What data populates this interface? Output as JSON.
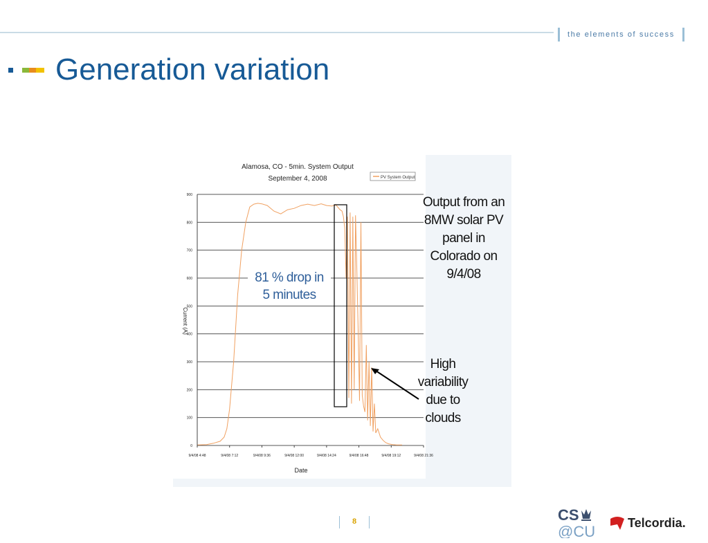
{
  "header": {
    "tagline": "the elements of success",
    "title": "Generation variation"
  },
  "chart_data": {
    "type": "line",
    "title": "Alamosa, CO - 5min. System Output",
    "subtitle": "September 4, 2008",
    "xlabel": "Date",
    "ylabel": "Current (A)",
    "ylim": [
      0,
      900
    ],
    "y_ticks": [
      "0",
      "100",
      "200",
      "300",
      "400",
      "500",
      "600",
      "700",
      "800",
      "900"
    ],
    "x_ticks": [
      "9/4/08 4:48",
      "9/4/08 7:12",
      "9/4/08 9:36",
      "9/4/08 12:00",
      "9/4/08 14:24",
      "9/4/08 16:48",
      "9/4/08 19:12",
      "9/4/08 21:36"
    ],
    "x_range_hours": [
      4.8,
      21.6
    ],
    "grid": "horizontal",
    "legend": {
      "placement": "top-right",
      "entries": [
        "PV System Output"
      ]
    },
    "series": [
      {
        "name": "PV System Output",
        "color": "#f0a060",
        "x_hours": [
          4.8,
          5.5,
          6.0,
          6.5,
          6.8,
          7.0,
          7.2,
          7.5,
          7.8,
          8.1,
          8.4,
          8.7,
          9.0,
          9.3,
          9.6,
          10.0,
          10.5,
          11.0,
          11.5,
          12.0,
          12.5,
          13.0,
          13.5,
          14.0,
          14.4,
          14.8,
          15.1,
          15.4,
          15.55,
          15.65,
          15.75,
          15.85,
          15.95,
          16.05,
          16.15,
          16.25,
          16.35,
          16.45,
          16.55,
          16.65,
          16.75,
          16.85,
          16.95,
          17.05,
          17.15,
          17.25,
          17.35,
          17.45,
          17.55,
          17.65,
          17.75,
          17.85,
          17.95,
          18.05,
          18.2,
          18.4,
          18.6,
          18.8,
          19.0,
          19.3,
          19.6,
          20.0
        ],
        "values": [
          2,
          3,
          8,
          15,
          30,
          60,
          130,
          300,
          540,
          700,
          800,
          855,
          865,
          868,
          866,
          860,
          840,
          830,
          845,
          850,
          860,
          865,
          860,
          866,
          860,
          858,
          862,
          845,
          840,
          820,
          780,
          600,
          820,
          170,
          835,
          150,
          820,
          200,
          825,
          620,
          400,
          160,
          800,
          180,
          140,
          120,
          360,
          90,
          300,
          70,
          280,
          50,
          150,
          45,
          60,
          30,
          18,
          10,
          6,
          3,
          2,
          2
        ]
      }
    ],
    "annotations": {
      "drop": "81 % drop in 5 minutes",
      "output_note": "Output from an 8MW solar PV panel in Colorado on 9/4/08",
      "variability": "High variability due to clouds"
    }
  },
  "footer": {
    "page_number": "8",
    "logos": [
      "CS @CU",
      "Telcordia."
    ]
  }
}
